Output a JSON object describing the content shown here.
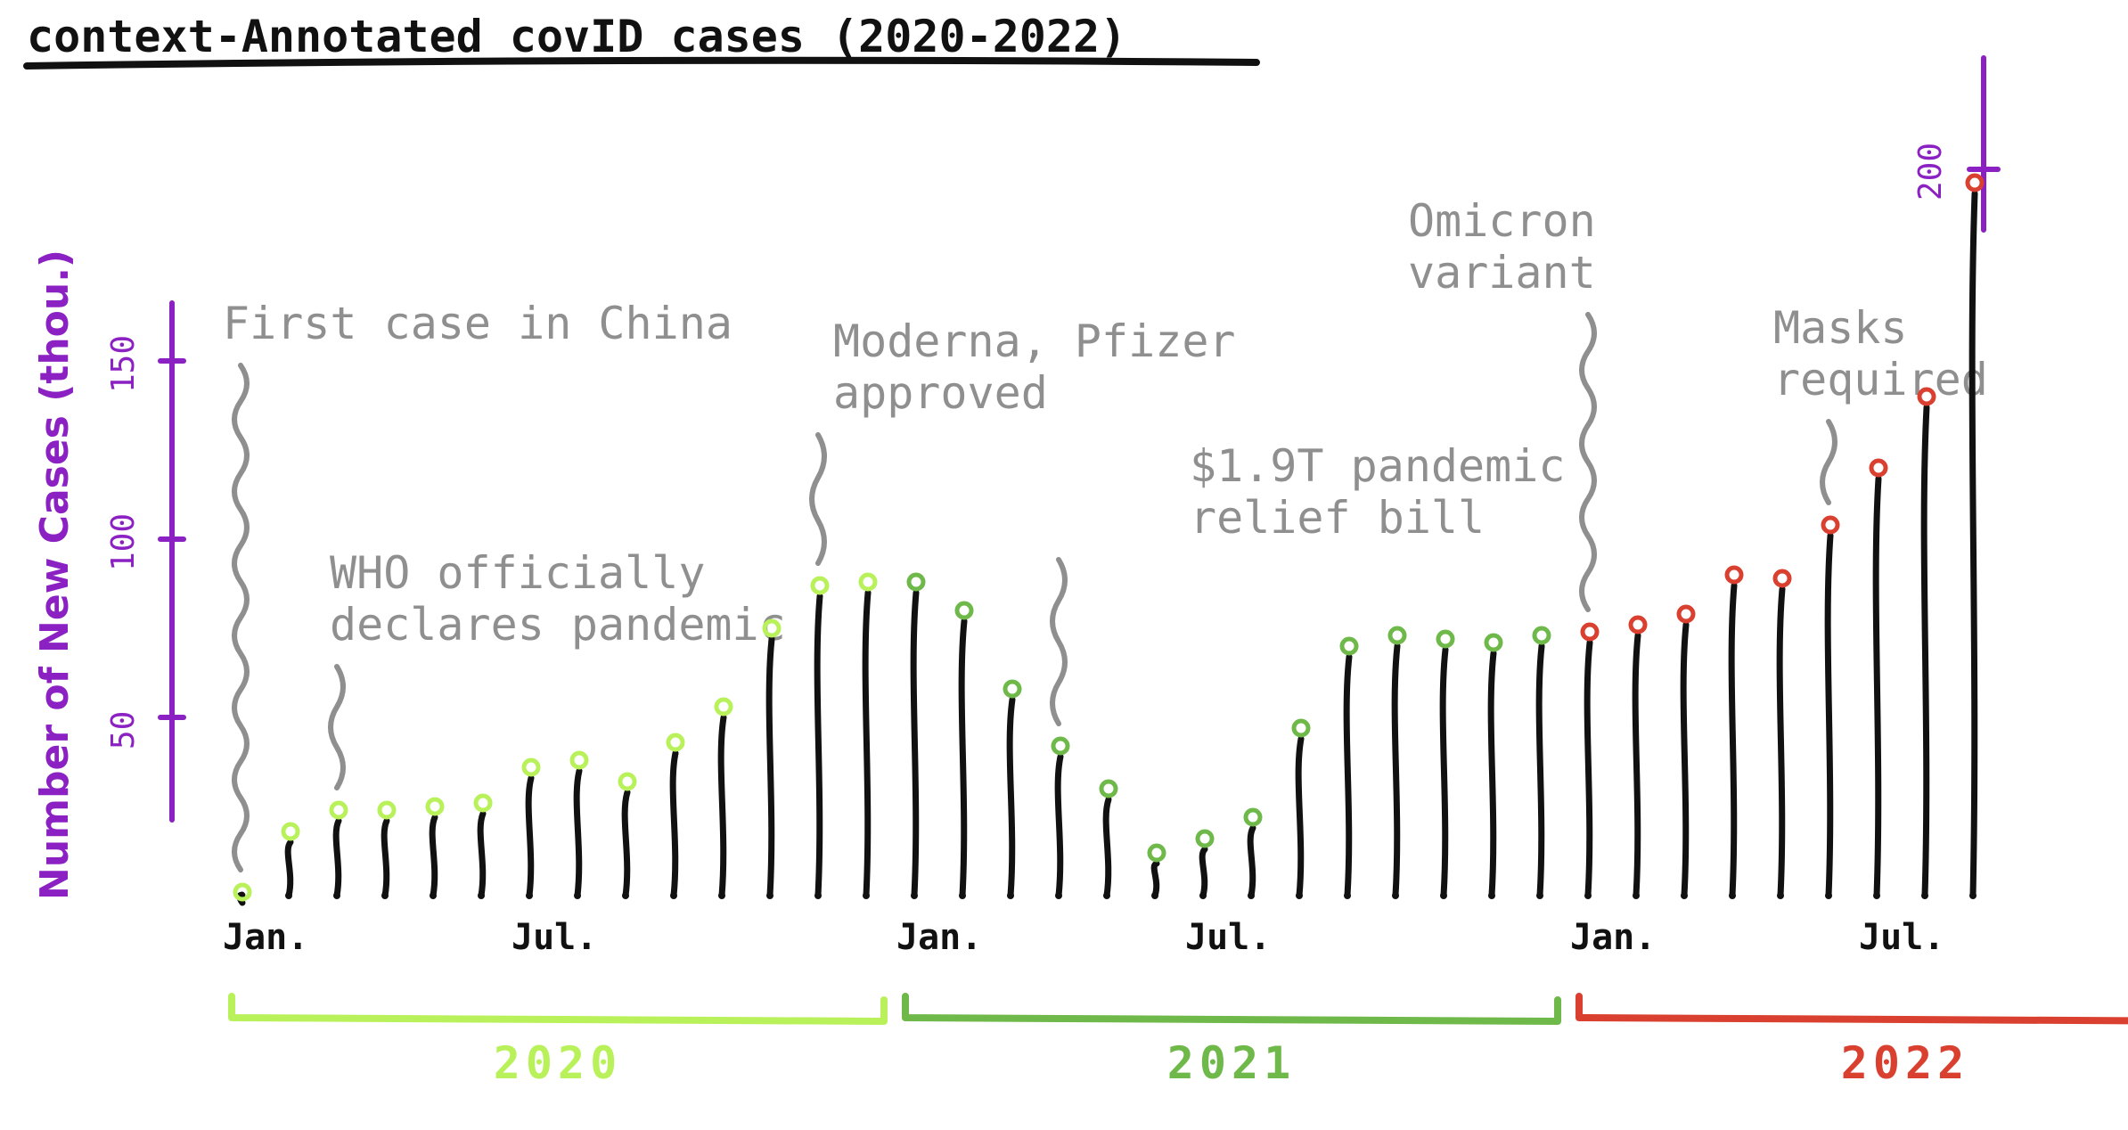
{
  "chart_data": {
    "type": "lollipop",
    "title": "context-Annotated covID cases (2020-2022)",
    "ylabel": "Number of New Cases (thou.)",
    "y_ticks": [
      "50",
      "100",
      "150"
    ],
    "y_ticks_secondary": [
      "200"
    ],
    "axis_color": "#8b21c2",
    "stem_color": "#111111",
    "x_labels": [
      {
        "label": "Jan.",
        "index": 0
      },
      {
        "label": "Jul.",
        "index": 6
      },
      {
        "label": "Jan.",
        "index": 14
      },
      {
        "label": "Jul.",
        "index": 20
      },
      {
        "label": "Jan.",
        "index": 28
      },
      {
        "label": "Jul.",
        "index": 34
      }
    ],
    "years": [
      {
        "label": "2020",
        "from": 0,
        "to": 13,
        "color": "#b9f15a"
      },
      {
        "label": "2021",
        "from": 14,
        "to": 27,
        "color": "#6fb84a"
      },
      {
        "label": "2022",
        "from": 28,
        "to": 41,
        "color": "#d9402f"
      }
    ],
    "values": [
      1,
      18,
      24,
      24,
      25,
      26,
      36,
      38,
      32,
      43,
      53,
      75,
      87,
      88,
      88,
      80,
      58,
      42,
      30,
      12,
      16,
      22,
      47,
      70,
      73,
      72,
      71,
      73,
      74,
      76,
      79,
      90,
      89,
      104,
      120,
      140,
      200
    ],
    "annotations": [
      {
        "lines": [
          "First case in China"
        ],
        "index": 0
      },
      {
        "lines": [
          "WHO officially",
          "declares pandemic"
        ],
        "index": 2
      },
      {
        "lines": [
          "Moderna, Pfizer",
          "approved"
        ],
        "index": 12
      },
      {
        "lines": [
          "$1.9T pandemic",
          "relief bill"
        ],
        "index": 17
      },
      {
        "lines": [
          "Omicron",
          "variant"
        ],
        "index": 28
      },
      {
        "lines": [
          "Masks",
          "required"
        ],
        "index": 33
      }
    ]
  }
}
